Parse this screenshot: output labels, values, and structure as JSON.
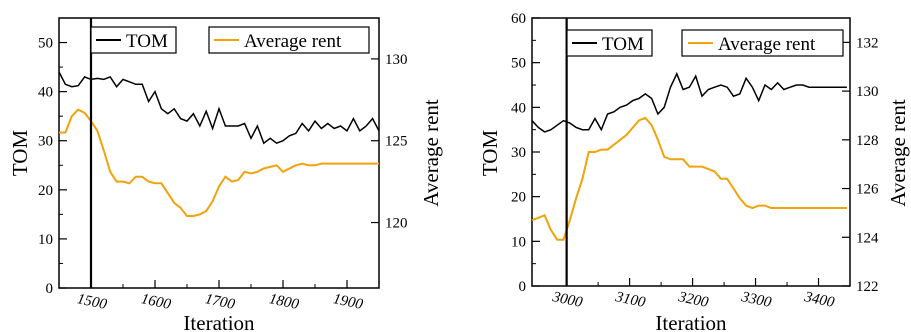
{
  "colors": {
    "tom": "#000000",
    "rent": "#F0A30A",
    "marker": "#000000"
  },
  "chart_data": [
    {
      "type": "line",
      "xlabel": "Iteration",
      "ylabel": "TOM",
      "y2label": "Average rent",
      "xlim": [
        1450,
        1950
      ],
      "ylim": [
        0,
        55
      ],
      "y2lim": [
        116,
        132.5
      ],
      "xticks": [
        1500,
        1600,
        1700,
        1800,
        1900
      ],
      "xtick_labels": [
        "1500",
        "1600",
        "1700",
        "1800",
        "1900"
      ],
      "yticks": [
        0,
        10,
        20,
        30,
        40,
        50
      ],
      "ytick_labels": [
        "0",
        "10",
        "20",
        "30",
        "40",
        "50"
      ],
      "y2ticks": [
        120,
        125,
        130
      ],
      "y2tick_labels": [
        "120",
        "125",
        "130"
      ],
      "vline": 1500,
      "legend": {
        "tom": "TOM",
        "rent": "Average rent"
      },
      "series": [
        {
          "name": "TOM",
          "axis": "left",
          "x": [
            1450,
            1460,
            1470,
            1480,
            1490,
            1500,
            1510,
            1520,
            1530,
            1540,
            1550,
            1560,
            1570,
            1580,
            1590,
            1600,
            1610,
            1620,
            1630,
            1640,
            1650,
            1660,
            1670,
            1680,
            1690,
            1700,
            1710,
            1720,
            1730,
            1740,
            1750,
            1760,
            1770,
            1780,
            1790,
            1800,
            1810,
            1820,
            1830,
            1840,
            1850,
            1860,
            1870,
            1880,
            1890,
            1900,
            1910,
            1920,
            1930,
            1940,
            1950
          ],
          "y": [
            44.0,
            41.5,
            41.0,
            41.2,
            43.0,
            42.5,
            42.7,
            42.5,
            43.0,
            41.0,
            42.5,
            42.0,
            41.5,
            41.5,
            38.0,
            40.0,
            36.5,
            35.5,
            36.5,
            34.5,
            34.0,
            35.5,
            33.0,
            36.0,
            32.5,
            36.5,
            33.0,
            33.0,
            33.0,
            33.5,
            30.5,
            33.0,
            29.5,
            30.5,
            29.5,
            30.0,
            31.0,
            31.5,
            33.5,
            32.0,
            34.0,
            32.5,
            33.5,
            32.5,
            33.0,
            32.0,
            34.5,
            32.0,
            33.0,
            34.5,
            32.0
          ]
        },
        {
          "name": "Average rent",
          "axis": "right",
          "x": [
            1450,
            1460,
            1470,
            1480,
            1490,
            1500,
            1510,
            1520,
            1530,
            1540,
            1550,
            1560,
            1570,
            1580,
            1590,
            1600,
            1610,
            1620,
            1630,
            1640,
            1650,
            1660,
            1670,
            1680,
            1690,
            1700,
            1710,
            1720,
            1730,
            1740,
            1750,
            1760,
            1770,
            1780,
            1790,
            1800,
            1810,
            1820,
            1830,
            1840,
            1850,
            1860,
            1870,
            1880,
            1890,
            1900,
            1910,
            1920,
            1930,
            1940,
            1950
          ],
          "y": [
            125.5,
            125.5,
            126.5,
            126.9,
            126.7,
            126.2,
            125.6,
            124.4,
            123.1,
            122.5,
            122.5,
            122.4,
            122.8,
            122.8,
            122.5,
            122.4,
            122.4,
            121.8,
            121.2,
            120.9,
            120.4,
            120.4,
            120.5,
            120.7,
            121.3,
            122.2,
            122.8,
            122.5,
            122.6,
            123.1,
            123.0,
            123.1,
            123.3,
            123.4,
            123.5,
            123.1,
            123.3,
            123.5,
            123.6,
            123.5,
            123.5,
            123.6,
            123.6,
            123.6,
            123.6,
            123.6,
            123.6,
            123.6,
            123.6,
            123.6,
            123.6
          ]
        }
      ]
    },
    {
      "type": "line",
      "xlabel": "Iteration",
      "ylabel": "TOM",
      "y2label": "Average rent",
      "xlim": [
        2945,
        3450
      ],
      "ylim": [
        0,
        60
      ],
      "y2lim": [
        122,
        133
      ],
      "xticks": [
        3000,
        3100,
        3200,
        3300,
        3400
      ],
      "xtick_labels": [
        "3000",
        "3100",
        "3200",
        "3300",
        "3400"
      ],
      "yticks": [
        0,
        10,
        20,
        30,
        40,
        50,
        60
      ],
      "ytick_labels": [
        "0",
        "10",
        "20",
        "30",
        "40",
        "50",
        "60"
      ],
      "y2ticks": [
        122,
        124,
        126,
        128,
        130,
        132
      ],
      "y2tick_labels": [
        "122",
        "124",
        "126",
        "128",
        "130",
        "132"
      ],
      "vline": 3000,
      "legend": {
        "tom": "TOM",
        "rent": "Average rent"
      },
      "series": [
        {
          "name": "TOM",
          "axis": "left",
          "x": [
            2945,
            2955,
            2965,
            2975,
            2985,
            2995,
            3005,
            3015,
            3025,
            3035,
            3045,
            3055,
            3065,
            3075,
            3085,
            3095,
            3105,
            3115,
            3125,
            3135,
            3145,
            3155,
            3165,
            3175,
            3185,
            3195,
            3205,
            3215,
            3225,
            3235,
            3245,
            3255,
            3265,
            3275,
            3285,
            3295,
            3305,
            3315,
            3325,
            3335,
            3345,
            3355,
            3365,
            3375,
            3385,
            3395,
            3405,
            3415,
            3425,
            3435,
            3445
          ],
          "y": [
            37.0,
            35.5,
            34.5,
            35.0,
            36.0,
            37.0,
            36.5,
            35.5,
            35.0,
            35.0,
            37.5,
            35.0,
            38.5,
            39.0,
            40.0,
            40.5,
            41.5,
            42.0,
            43.0,
            42.0,
            38.5,
            40.0,
            44.5,
            47.5,
            44.0,
            44.5,
            47.0,
            42.5,
            44.0,
            44.5,
            45.0,
            44.5,
            42.5,
            43.0,
            46.5,
            44.5,
            41.5,
            45.0,
            44.0,
            45.5,
            44.0,
            44.5,
            45.0,
            45.0,
            44.5,
            44.5,
            44.5,
            44.5,
            44.5,
            44.5,
            44.5
          ]
        },
        {
          "name": "Average rent",
          "axis": "right",
          "x": [
            2945,
            2955,
            2965,
            2975,
            2985,
            2995,
            3005,
            3015,
            3025,
            3035,
            3045,
            3055,
            3065,
            3075,
            3085,
            3095,
            3105,
            3115,
            3125,
            3135,
            3145,
            3155,
            3165,
            3175,
            3185,
            3195,
            3205,
            3215,
            3225,
            3235,
            3245,
            3255,
            3265,
            3275,
            3285,
            3295,
            3305,
            3315,
            3325,
            3335,
            3345,
            3355,
            3365,
            3375,
            3385,
            3395,
            3405,
            3415,
            3425,
            3435,
            3445
          ],
          "y": [
            124.7,
            124.8,
            124.9,
            124.3,
            123.9,
            123.9,
            124.7,
            125.6,
            126.4,
            127.5,
            127.5,
            127.6,
            127.6,
            127.8,
            128.0,
            128.2,
            128.5,
            128.8,
            128.9,
            128.6,
            128.0,
            127.3,
            127.2,
            127.2,
            127.2,
            126.9,
            126.9,
            126.9,
            126.8,
            126.7,
            126.4,
            126.4,
            126.0,
            125.6,
            125.3,
            125.2,
            125.3,
            125.3,
            125.2,
            125.2,
            125.2,
            125.2,
            125.2,
            125.2,
            125.2,
            125.2,
            125.2,
            125.2,
            125.2,
            125.2,
            125.2
          ]
        }
      ]
    }
  ]
}
